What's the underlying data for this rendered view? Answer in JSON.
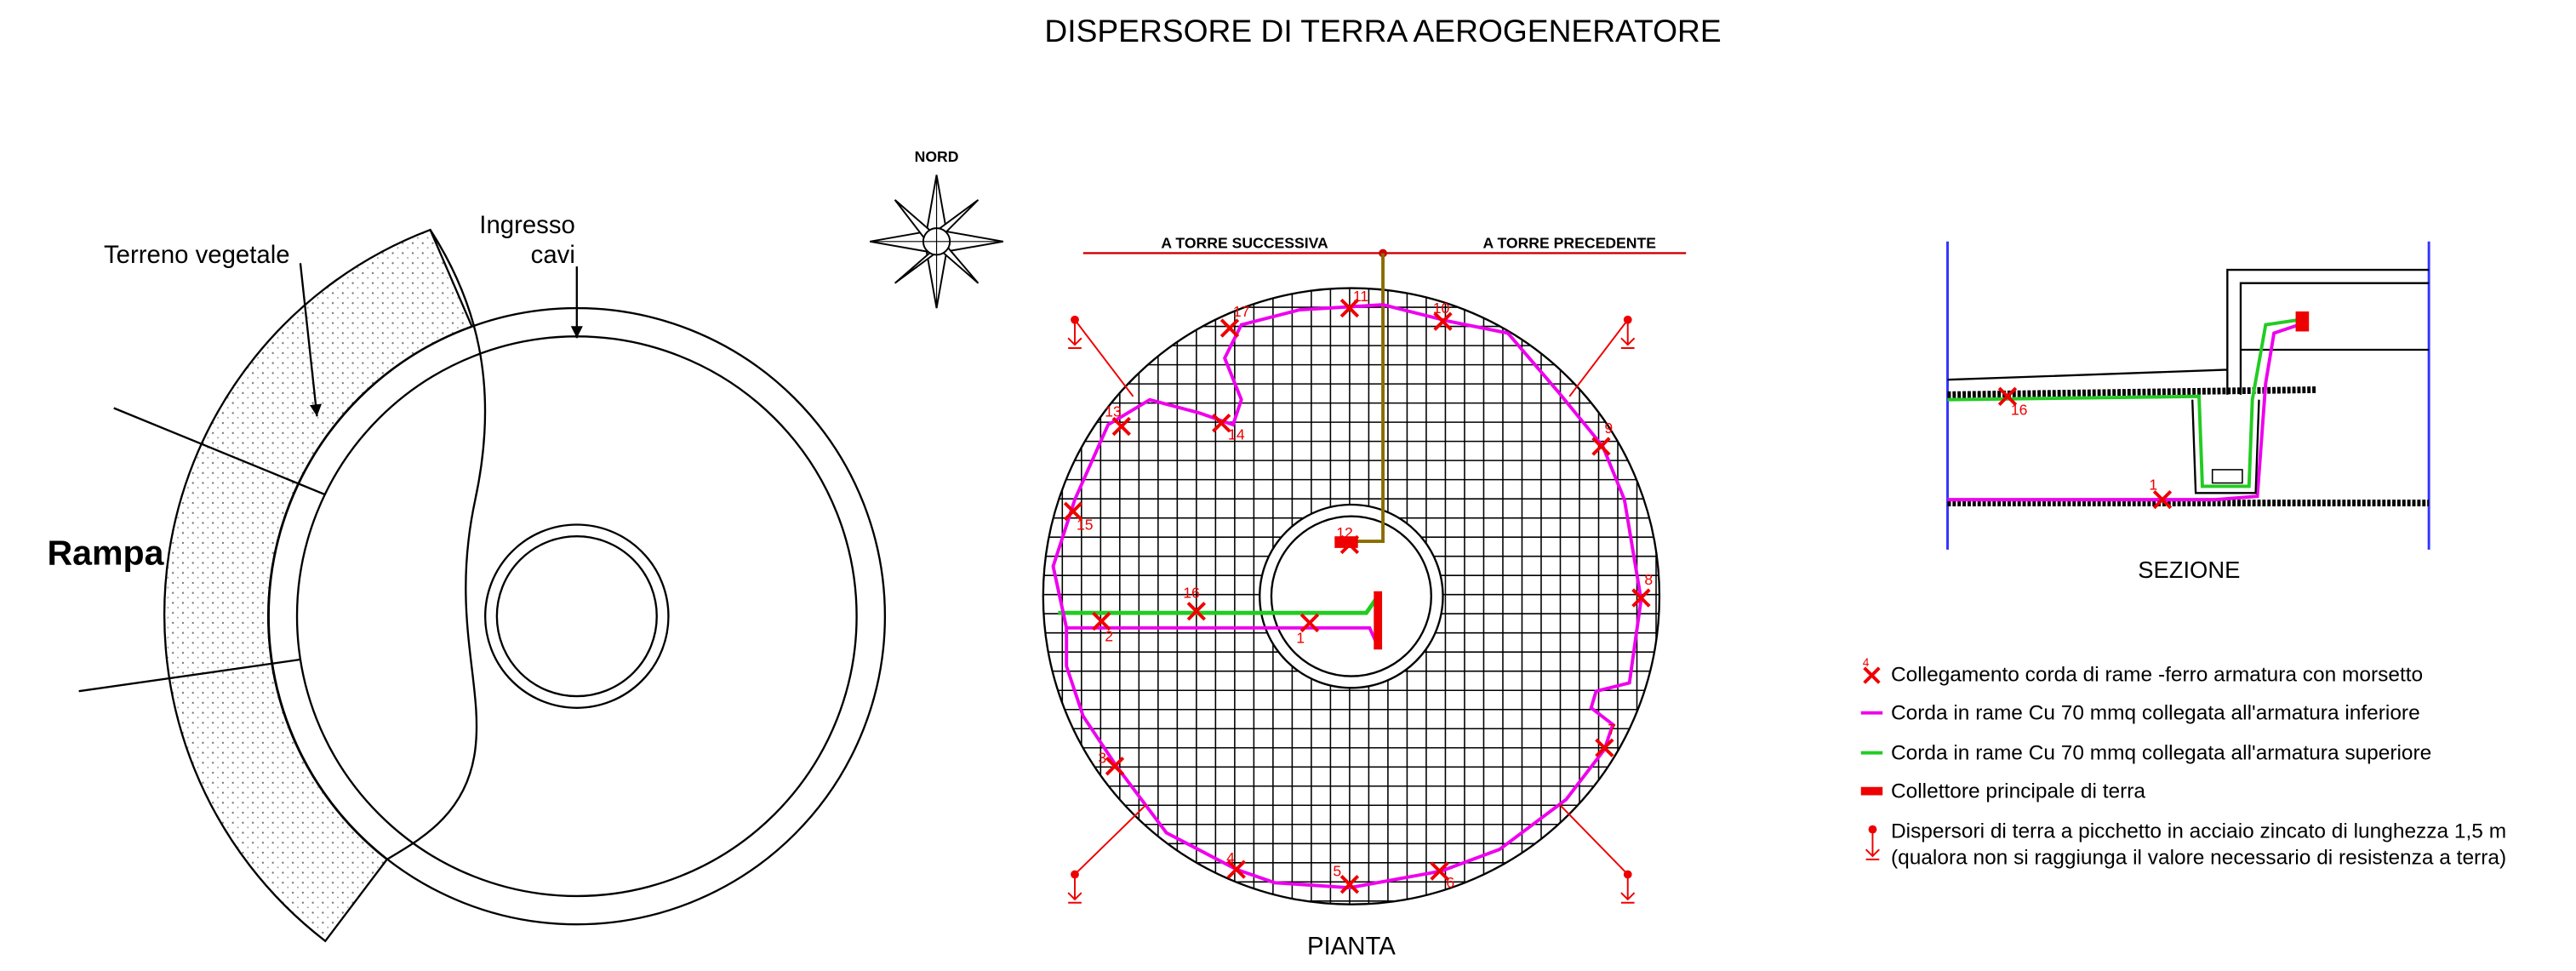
{
  "header": {
    "title": "DISPERSORE DI TERRA AEROGENERATORE"
  },
  "elevation": {
    "terrain_label": "Terreno vegetale",
    "cable_entry_label": [
      "Ingresso",
      "cavi"
    ],
    "ramp_label": "Rampa"
  },
  "compass": {
    "label": "NORD"
  },
  "plan": {
    "left_direction": "A TORRE SUCCESSIVA",
    "right_direction": "A TORRE PRECEDENTE",
    "caption": "PIANTA",
    "markers": [
      "1",
      "2",
      "3",
      "4",
      "5",
      "6",
      "7",
      "8",
      "9",
      "10",
      "11",
      "12",
      "13",
      "14",
      "15",
      "16",
      "17"
    ]
  },
  "section": {
    "caption": "SEZIONE",
    "markers": [
      "16",
      "1"
    ]
  },
  "legend": {
    "items": [
      "Collegamento corda di rame -ferro armatura con morsetto",
      "Corda in rame Cu 70 mmq collegata all'armatura inferiore",
      "Corda in rame Cu 70 mmq collegata all'armatura superiore",
      "Collettore principale di terra"
    ],
    "marker_label": "4",
    "stake_lines": [
      "Dispersori di terra a picchetto in acciaio zincato di lunghezza 1,5 m",
      "(qualora non si raggiunga il valore necessario di resistenza a terra)"
    ]
  }
}
